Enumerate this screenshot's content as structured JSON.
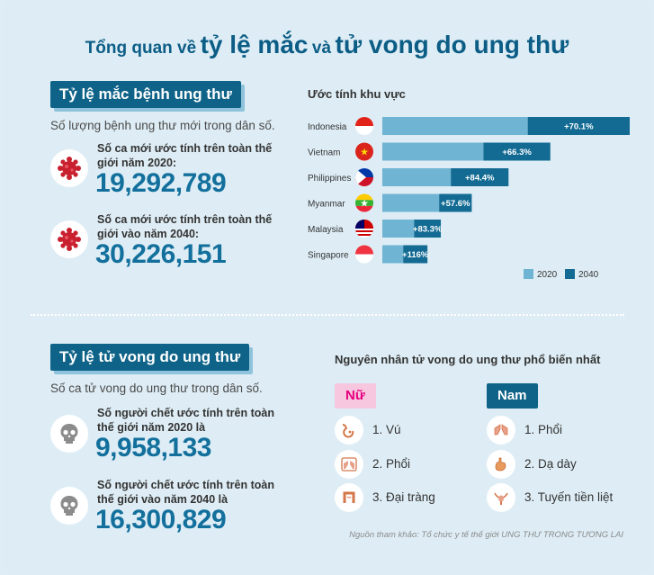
{
  "title": {
    "part1": "Tổng quan về",
    "part2": "tỷ lệ mắc",
    "part3": "và",
    "part4": "tử vong do ung thư"
  },
  "incidence": {
    "tag": "Tỷ lệ mắc bệnh ung thư",
    "desc": "Số lượng bệnh ung thư mới trong dân số.",
    "stats": [
      {
        "label_line1": "Số ca mới ước tính trên toàn thế",
        "label_line2": "giới năm 2020:",
        "value": "19,292,789",
        "icon": "virus-icon"
      },
      {
        "label_line1": "Số ca mới ước tính trên toàn thế",
        "label_line2": "giới vào năm 2040:",
        "value": "30,226,151",
        "icon": "virus-icon"
      }
    ]
  },
  "mortality": {
    "tag": "Tỷ lệ tử vong do ung thư",
    "desc": "Số ca tử vong do ung thư trong dân số.",
    "stats": [
      {
        "label_line1": "Số người chết ước tính trên toàn",
        "label_line2": "thế giới năm 2020 là",
        "value": "9,958,133",
        "icon": "skull-icon"
      },
      {
        "label_line1": "Số người chết ước tính trên toàn",
        "label_line2": "thế giới vào năm 2040 là",
        "value": "16,300,829",
        "icon": "skull-icon"
      }
    ]
  },
  "chart_data": {
    "type": "bar",
    "orientation": "horizontal",
    "title": "Ước tính khu vực",
    "categories": [
      "Indonesia",
      "Vietnam",
      "Philippines",
      "Myanmar",
      "Malaysia",
      "Singapore"
    ],
    "series": [
      {
        "name": "2020",
        "color": "#6fb4d3",
        "values": [
          1.74,
          1.21,
          0.82,
          0.68,
          0.38,
          0.25
        ]
      },
      {
        "name": "2040",
        "color": "#136b94",
        "values": [
          2.96,
          2.01,
          1.51,
          1.07,
          0.7,
          0.54
        ]
      }
    ],
    "data_labels": [
      "+70.1%",
      "+66.3%",
      "+84.4%",
      "+57.6%",
      "+83.3%",
      "+116%"
    ],
    "legend_position": "bottom-right",
    "grid": false
  },
  "causes": {
    "title": "Nguyên nhân tử vong do ung thư phổ biến nhất",
    "female": {
      "tag": "Nữ",
      "tag_color": "#e6007e",
      "tag_bg": "#f7c6df",
      "items": [
        {
          "label": "1. Vú",
          "icon": "breast-icon"
        },
        {
          "label": "2. Phổi",
          "icon": "lungs-icon"
        },
        {
          "label": "3. Đại tràng",
          "icon": "colon-icon"
        }
      ]
    },
    "male": {
      "tag": "Nam",
      "tag_color": "#ffffff",
      "tag_bg": "#0f6388",
      "items": [
        {
          "label": "1. Phổi",
          "icon": "lungs-icon"
        },
        {
          "label": "2. Dạ dày",
          "icon": "stomach-icon"
        },
        {
          "label": "3. Tuyến tiền liệt",
          "icon": "prostate-icon"
        }
      ]
    }
  },
  "source": "Nguồn tham khảo: Tổ chức y tế thế giới UNG THƯ TRONG TƯƠNG LAI"
}
